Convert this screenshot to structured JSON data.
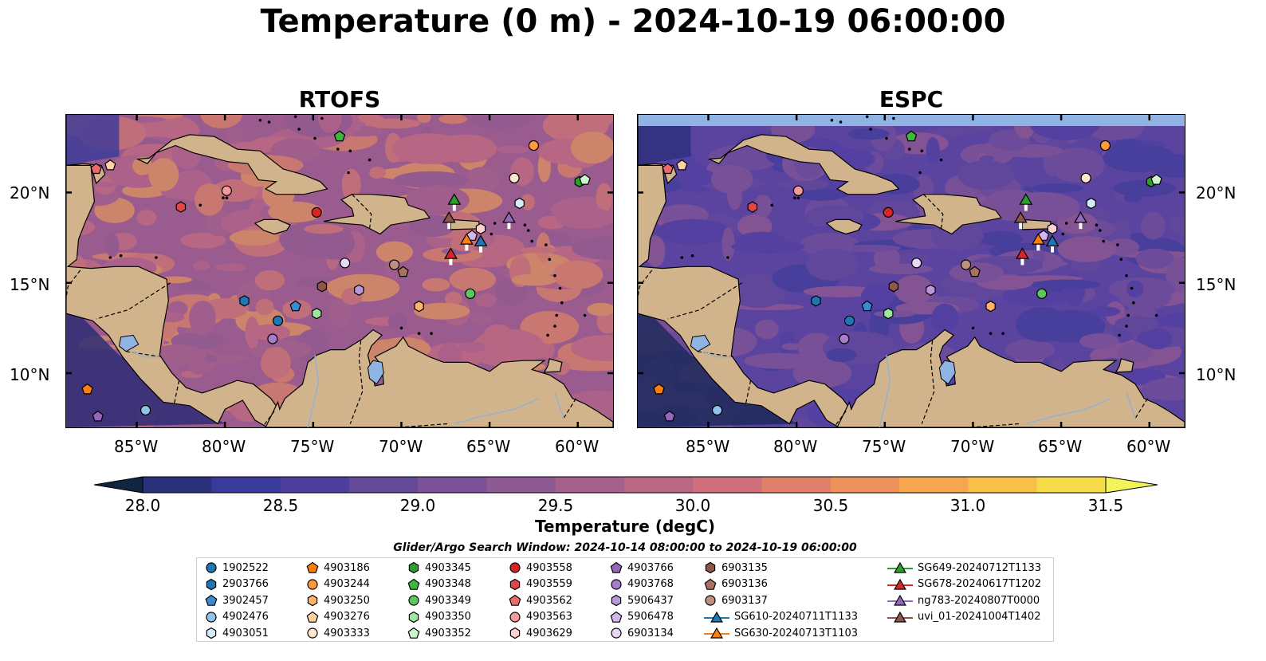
{
  "title": "Temperature (0 m) - 2024-10-19 06:00:00",
  "panels": [
    {
      "title": "RTOFS"
    },
    {
      "title": "ESPC"
    }
  ],
  "axes": {
    "lon_ticks": [
      "85°W",
      "80°W",
      "75°W",
      "70°W",
      "65°W",
      "60°W"
    ],
    "lat_ticks": [
      "20°N",
      "15°N",
      "10°N"
    ]
  },
  "colorbar": {
    "label": "Temperature (degC)",
    "ticks": [
      "28.0",
      "28.5",
      "29.0",
      "29.5",
      "30.0",
      "30.5",
      "31.0",
      "31.5"
    ],
    "range": [
      28.0,
      31.5
    ],
    "extend": "both",
    "colors": [
      "#1d1f46",
      "#2a2f7a",
      "#3a3a9a",
      "#4e3ea0",
      "#654a9a",
      "#7b5298",
      "#8f5a93",
      "#a5618c",
      "#b96785",
      "#d0707b",
      "#e07f6a",
      "#ee915b",
      "#f6a64e",
      "#f9c048",
      "#f7dc4a",
      "#f3f35a"
    ]
  },
  "legend": {
    "title": "Glider/Argo Search Window: 2024-10-14 08:00:00 to 2024-10-19 06:00:00",
    "columns": [
      [
        {
          "label": "1902522",
          "shape": "circle",
          "color": "#1f77b4"
        },
        {
          "label": "2903766",
          "shape": "hexagon",
          "color": "#1f77b4"
        },
        {
          "label": "3902457",
          "shape": "pentagon",
          "color": "#3a8bd1"
        },
        {
          "label": "4902476",
          "shape": "circle",
          "color": "#8fc3ea"
        },
        {
          "label": "4903051",
          "shape": "hexagon",
          "color": "#d6ecfb"
        }
      ],
      [
        {
          "label": "4903186",
          "shape": "pentagon",
          "color": "#ff7f0e"
        },
        {
          "label": "4903244",
          "shape": "circle",
          "color": "#ff9a3c"
        },
        {
          "label": "4903250",
          "shape": "hexagon",
          "color": "#ffb26a"
        },
        {
          "label": "4903276",
          "shape": "pentagon",
          "color": "#ffd0a3"
        },
        {
          "label": "4903333",
          "shape": "circle",
          "color": "#ffe7cf"
        }
      ],
      [
        {
          "label": "4903345",
          "shape": "hexagon",
          "color": "#2ca02c"
        },
        {
          "label": "4903348",
          "shape": "pentagon",
          "color": "#3cb83c"
        },
        {
          "label": "4903349",
          "shape": "circle",
          "color": "#5cc85c"
        },
        {
          "label": "4903350",
          "shape": "hexagon",
          "color": "#9ee89e"
        },
        {
          "label": "4903352",
          "shape": "pentagon",
          "color": "#cdf5cd"
        }
      ],
      [
        {
          "label": "4903558",
          "shape": "circle",
          "color": "#d62728"
        },
        {
          "label": "4903559",
          "shape": "hexagon",
          "color": "#e04848"
        },
        {
          "label": "4903562",
          "shape": "pentagon",
          "color": "#ea6a6a"
        },
        {
          "label": "4903563",
          "shape": "circle",
          "color": "#f39a9a"
        },
        {
          "label": "4903629",
          "shape": "hexagon",
          "color": "#fcd0d0"
        }
      ],
      [
        {
          "label": "4903766",
          "shape": "pentagon",
          "color": "#9467bd"
        },
        {
          "label": "4903768",
          "shape": "circle",
          "color": "#a67ecb"
        },
        {
          "label": "5906437",
          "shape": "hexagon",
          "color": "#b997d9"
        },
        {
          "label": "5906478",
          "shape": "pentagon",
          "color": "#d2b8ea"
        },
        {
          "label": "6903134",
          "shape": "circle",
          "color": "#e8d8f6"
        }
      ],
      [
        {
          "label": "6903135",
          "shape": "hexagon",
          "color": "#8c564b"
        },
        {
          "label": "6903136",
          "shape": "pentagon",
          "color": "#a8725f"
        },
        {
          "label": "6903137",
          "shape": "circle",
          "color": "#c0907e"
        },
        {
          "label": "SG610-20240711T1133",
          "shape": "triangle-line",
          "color": "#1f77b4"
        },
        {
          "label": "SG630-20240713T1103",
          "shape": "triangle-line",
          "color": "#ff7f0e"
        }
      ],
      [
        {
          "label": "SG649-20240712T1133",
          "shape": "triangle-line",
          "color": "#2ca02c"
        },
        {
          "label": "SG678-20240617T1202",
          "shape": "triangle-line",
          "color": "#d62728"
        },
        {
          "label": "ng783-20240807T0000",
          "shape": "triangle-line",
          "color": "#9467bd"
        },
        {
          "label": "uvi_01-20241004T1402",
          "shape": "triangle-line",
          "color": "#8c564b"
        }
      ]
    ]
  },
  "map_extent": {
    "lon": [
      -89,
      -58
    ],
    "lat": [
      7,
      24.3
    ]
  },
  "land_color": "#d2b48c",
  "lake_color": "#8fb3e2",
  "observations": [
    {
      "id": "1902522",
      "lon": -77.0,
      "lat": 12.9
    },
    {
      "id": "2903766",
      "lon": -78.9,
      "lat": 14.0
    },
    {
      "id": "3902457",
      "lon": -76.0,
      "lat": 13.7
    },
    {
      "id": "4902476",
      "lon": -84.5,
      "lat": 7.95
    },
    {
      "id": "4903051",
      "lon": -63.3,
      "lat": 19.4
    },
    {
      "id": "4903186",
      "lon": -87.8,
      "lat": 9.1
    },
    {
      "id": "4903244",
      "lon": -62.5,
      "lat": 22.6
    },
    {
      "id": "4903250",
      "lon": -69.0,
      "lat": 13.7
    },
    {
      "id": "4903276",
      "lon": -86.5,
      "lat": 21.5
    },
    {
      "id": "4903333",
      "lon": -63.6,
      "lat": 20.8
    },
    {
      "id": "4903345",
      "lon": -59.9,
      "lat": 20.6
    },
    {
      "id": "4903348",
      "lon": -73.5,
      "lat": 23.1
    },
    {
      "id": "4903349",
      "lon": -66.1,
      "lat": 14.4
    },
    {
      "id": "4903350",
      "lon": -74.8,
      "lat": 13.3
    },
    {
      "id": "4903352",
      "lon": -59.6,
      "lat": 20.7
    },
    {
      "id": "4903558",
      "lon": -74.8,
      "lat": 18.9
    },
    {
      "id": "4903559",
      "lon": -82.5,
      "lat": 19.2
    },
    {
      "id": "4903562",
      "lon": -87.3,
      "lat": 21.3
    },
    {
      "id": "4903563",
      "lon": -79.9,
      "lat": 20.1
    },
    {
      "id": "4903629",
      "lon": -65.5,
      "lat": 18.0
    },
    {
      "id": "4903766",
      "lon": -87.2,
      "lat": 7.6
    },
    {
      "id": "4903768",
      "lon": -77.3,
      "lat": 11.9
    },
    {
      "id": "5906437",
      "lon": -72.4,
      "lat": 14.6
    },
    {
      "id": "5906478",
      "lon": -66.0,
      "lat": 17.6
    },
    {
      "id": "6903134",
      "lon": -73.2,
      "lat": 16.1
    },
    {
      "id": "6903135",
      "lon": -74.5,
      "lat": 14.8
    },
    {
      "id": "6903136",
      "lon": -69.9,
      "lat": 15.6
    },
    {
      "id": "6903137",
      "lon": -70.4,
      "lat": 16.0
    },
    {
      "id": "SG610-20240711T1133",
      "lon": -65.5,
      "lat": 17.3
    },
    {
      "id": "SG630-20240713T1103",
      "lon": -66.3,
      "lat": 17.4
    },
    {
      "id": "SG649-20240712T1133",
      "lon": -67.0,
      "lat": 19.6
    },
    {
      "id": "SG678-20240617T1202",
      "lon": -67.2,
      "lat": 16.6
    },
    {
      "id": "ng783-20240807T0000",
      "lon": -63.9,
      "lat": 18.6
    },
    {
      "id": "uvi_01-20241004T1402",
      "lon": -67.3,
      "lat": 18.6
    }
  ]
}
